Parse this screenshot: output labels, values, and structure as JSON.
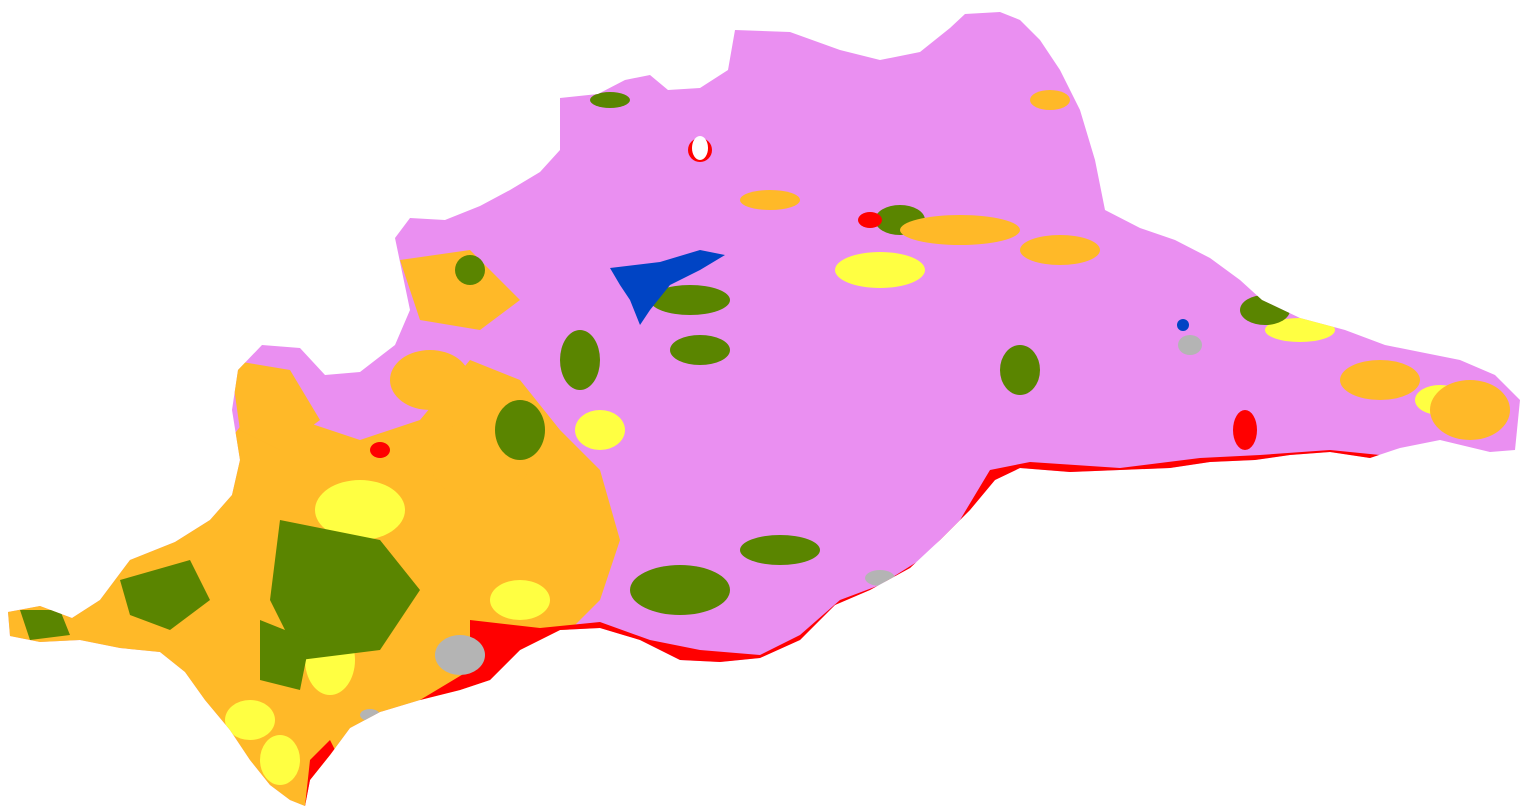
{
  "map": {
    "colors": {
      "agricultural": "#ea8ff1",
      "shrubland": "#ffb928",
      "grassland": "#ffff42",
      "forest": "#5a8500",
      "urban": "#ff0000",
      "water": "#0044c4",
      "bare": "#b4b4b4",
      "background": "#ffffff"
    }
  }
}
